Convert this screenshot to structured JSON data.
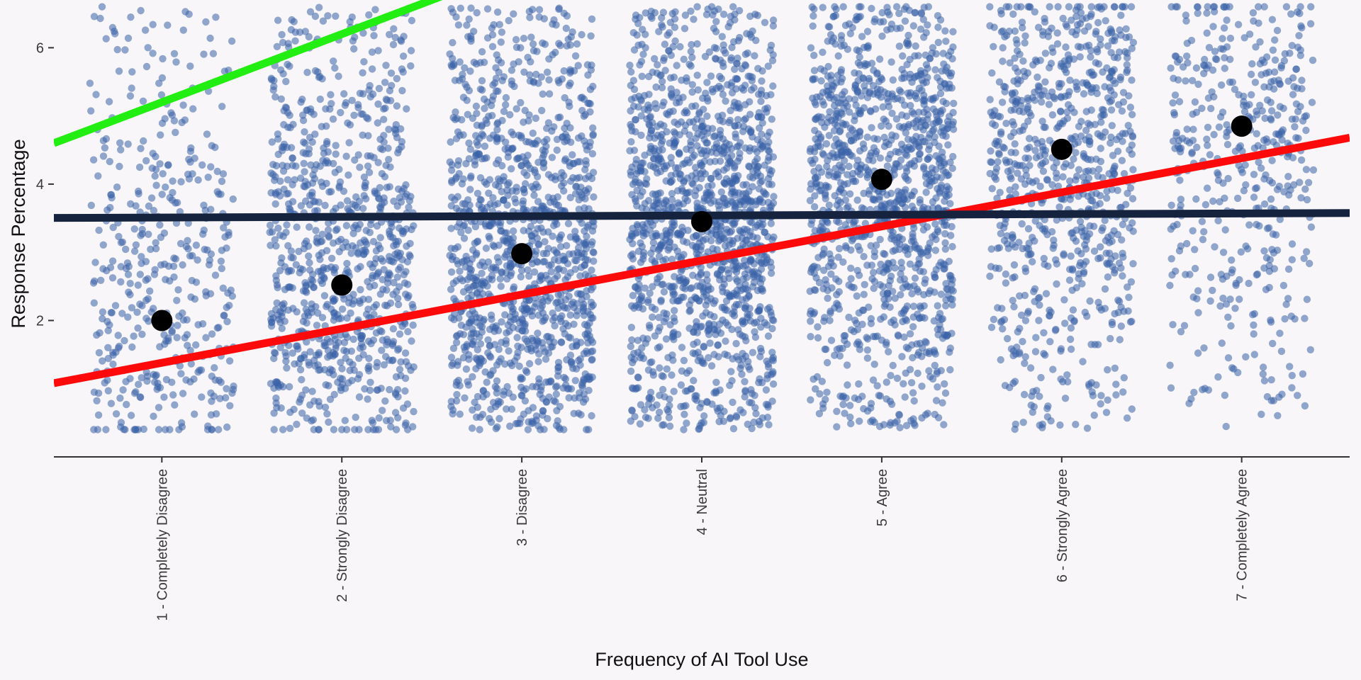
{
  "chart_data": {
    "type": "scatter",
    "title": "",
    "xlabel": "Frequency of AI Tool Use",
    "ylabel": "Response Percentage",
    "categories": [
      "1 - Completely Disagree",
      "2 - Strongly Disagree",
      "3 - Disagree",
      "4 - Neutral",
      "5 - Agree",
      "6 - Strongly Agree",
      "7 - Completely Agree"
    ],
    "x_positions": [
      1,
      2,
      3,
      4,
      5,
      6,
      7
    ],
    "xlim": [
      0.4,
      7.6
    ],
    "ylim": [
      0,
      6.7
    ],
    "y_ticks": [
      2,
      4,
      6
    ],
    "grid": false,
    "legend": "none",
    "jitter": {
      "width": 0.4,
      "y_range": [
        0.4,
        6.6
      ],
      "counts": [
        420,
        900,
        1200,
        1400,
        1200,
        800,
        450
      ],
      "color": "#3a63a8",
      "opacity": 0.55
    },
    "means": [
      2.0,
      2.52,
      2.98,
      3.45,
      4.07,
      4.51,
      4.85
    ],
    "mean_color": "#000000",
    "lines": [
      {
        "color": "#22ee11",
        "intercept": 4.2,
        "slope": 1.0,
        "x_range": [
          0.4,
          7.6
        ]
      },
      {
        "color": "#ff0a0a",
        "intercept": 0.88,
        "slope": 0.5,
        "x_range": [
          0.4,
          7.6
        ]
      },
      {
        "color": "#15233f",
        "intercept": 3.5,
        "slope": 0.01,
        "x_range": [
          0.4,
          7.6
        ]
      }
    ]
  }
}
